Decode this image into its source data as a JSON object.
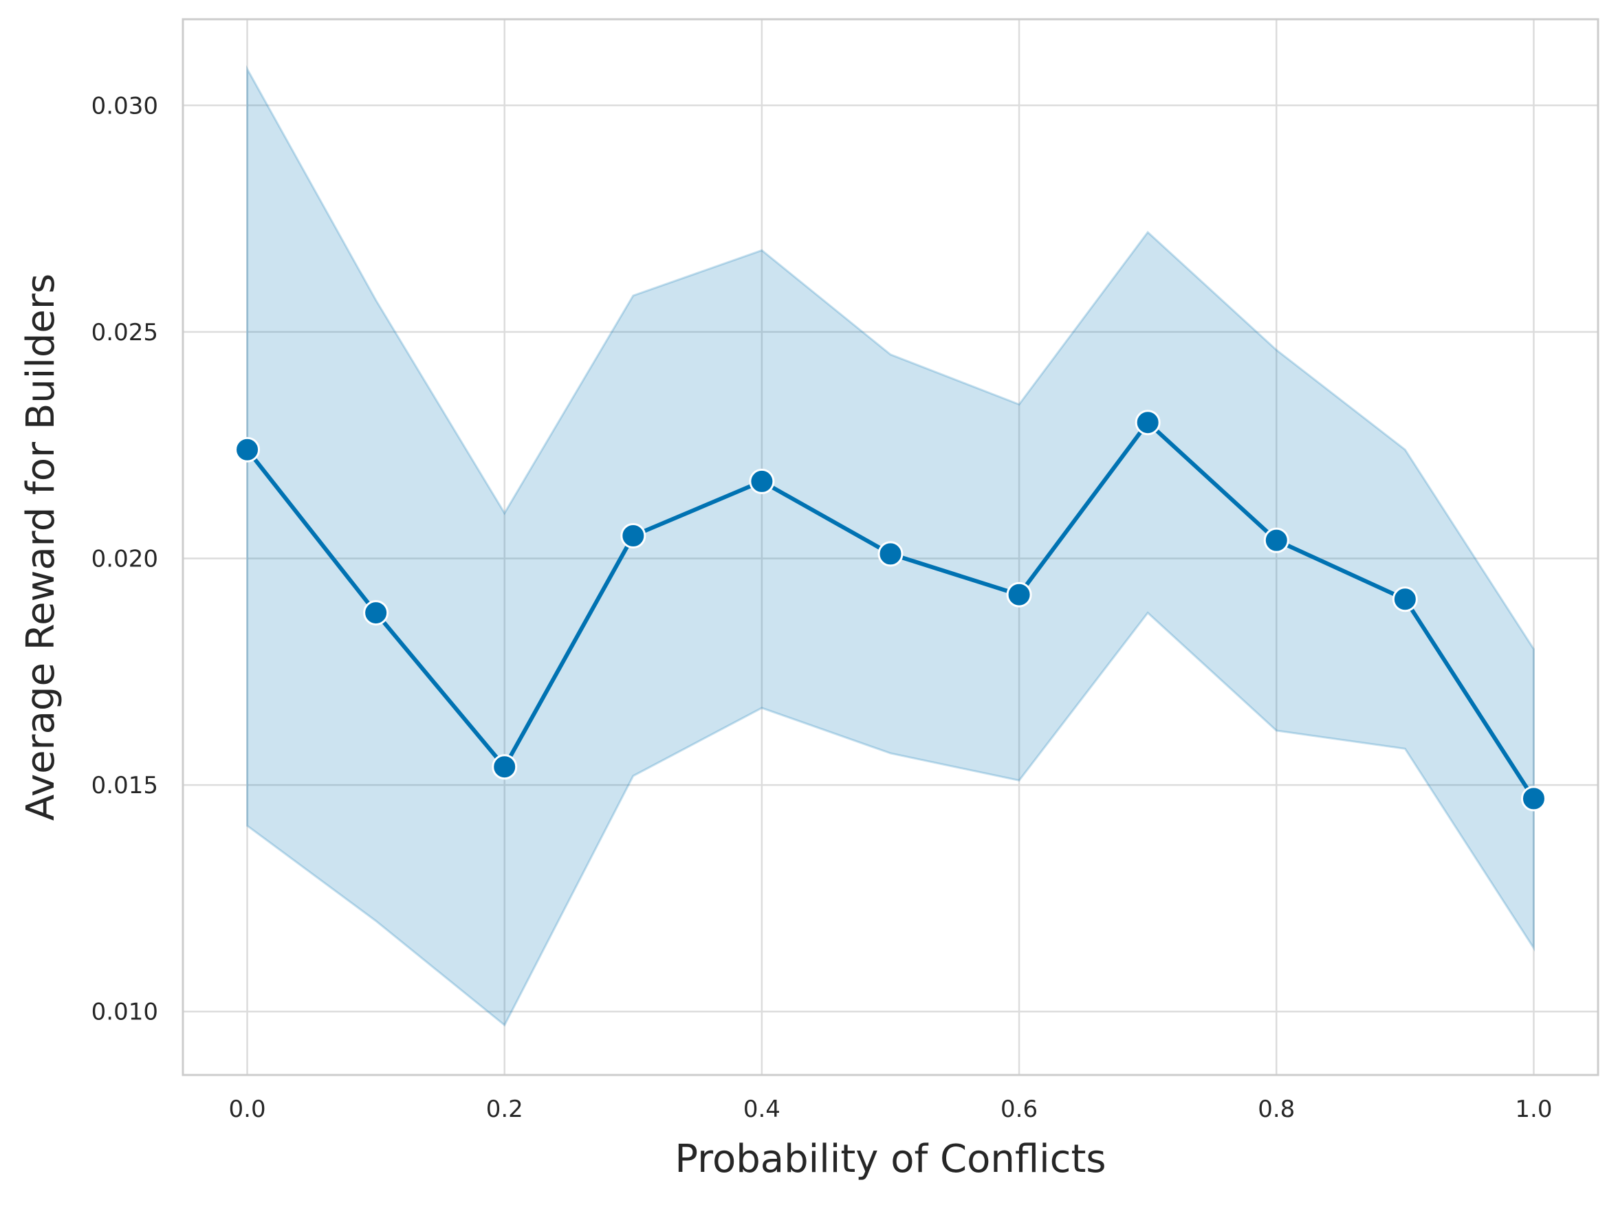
{
  "chart_data": {
    "type": "line",
    "title": "",
    "xlabel": "Probability of Conflicts",
    "ylabel": "Average Reward for Builders",
    "xlim": [
      -0.05,
      1.05
    ],
    "ylim": [
      0.0086,
      0.0319
    ],
    "xticks": [
      0.0,
      0.2,
      0.4,
      0.6,
      0.8,
      1.0
    ],
    "xtick_labels": [
      "0.0",
      "0.2",
      "0.4",
      "0.6",
      "0.8",
      "1.0"
    ],
    "yticks": [
      0.01,
      0.015,
      0.02,
      0.025,
      0.03
    ],
    "ytick_labels": [
      "0.010",
      "0.015",
      "0.020",
      "0.025",
      "0.030"
    ],
    "grid": true,
    "legend": "none",
    "series": [
      {
        "x": [
          0.0,
          0.1,
          0.2,
          0.3,
          0.4,
          0.5,
          0.6,
          0.7,
          0.8,
          0.9,
          1.0
        ],
        "values": [
          0.0224,
          0.0188,
          0.0154,
          0.0205,
          0.0217,
          0.0201,
          0.0192,
          0.023,
          0.0204,
          0.0191,
          0.0147
        ],
        "ci_lower": [
          0.0141,
          0.012,
          0.0097,
          0.0152,
          0.0167,
          0.0157,
          0.0151,
          0.0188,
          0.0162,
          0.0158,
          0.0114
        ],
        "ci_upper": [
          0.0308,
          0.0257,
          0.021,
          0.0258,
          0.0268,
          0.0245,
          0.0234,
          0.0272,
          0.0246,
          0.0224,
          0.018
        ],
        "color": "#0072b2",
        "band_color": "#0072b2",
        "marker": "circle"
      }
    ],
    "colors": {
      "line": "#0072b2",
      "band": "#0072b2",
      "grid": "#dcdcdc",
      "frame": "#cccccc",
      "text": "#262626"
    }
  }
}
